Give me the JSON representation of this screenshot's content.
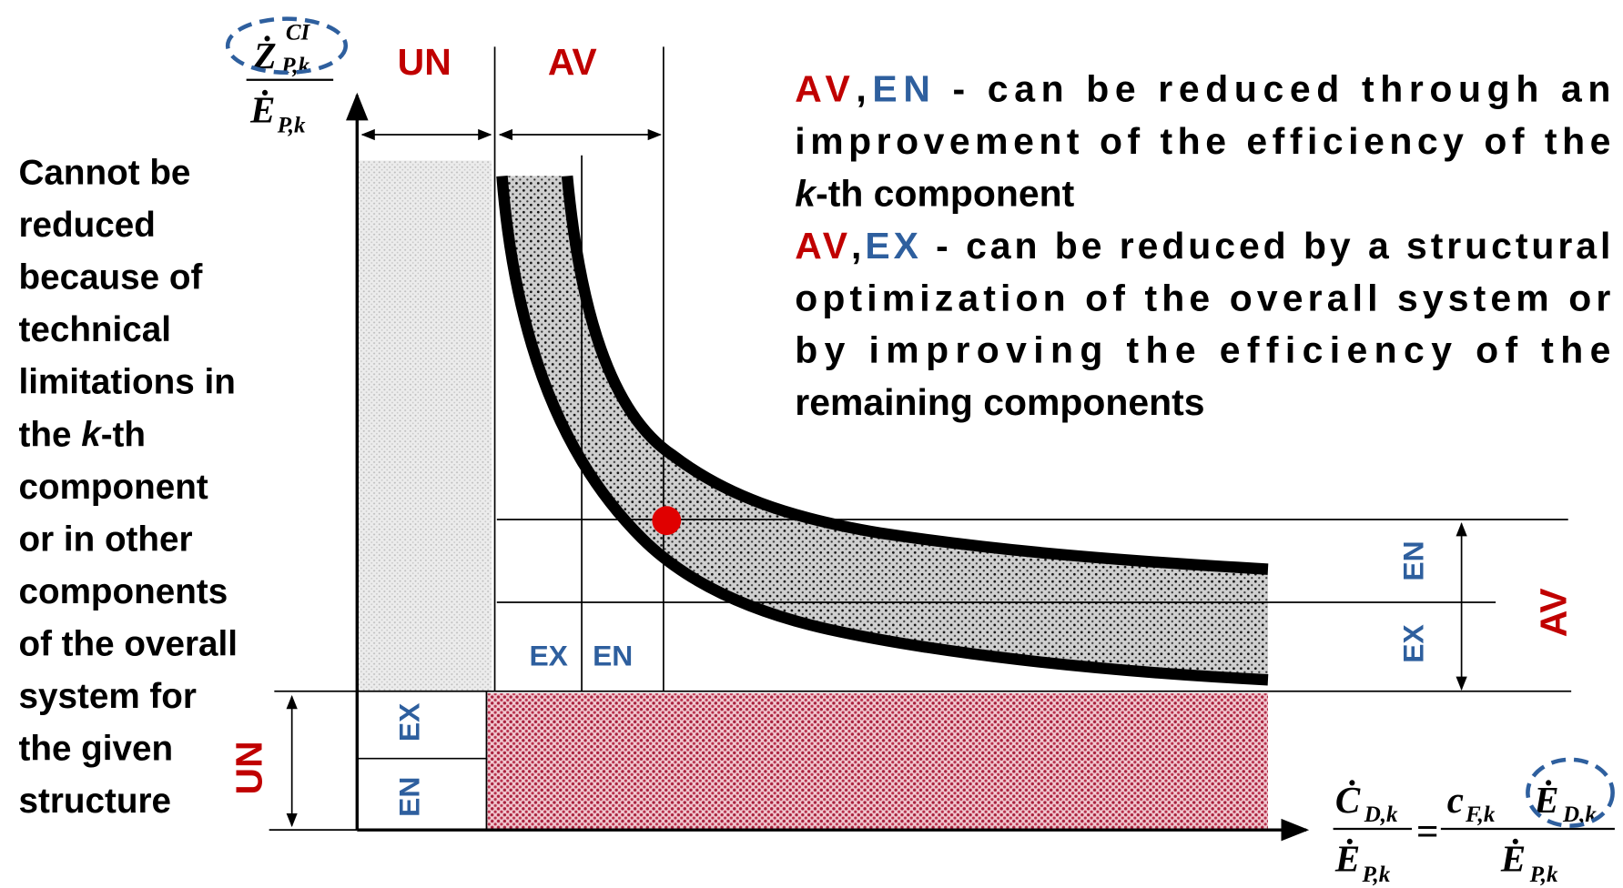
{
  "y_axis_label": {
    "numerator": "Ż",
    "numerator_sup": "CI",
    "numerator_sub": "P,k",
    "denominator": "Ė",
    "denominator_sub": "P,k"
  },
  "column_headers": [
    "UN",
    "AV"
  ],
  "left_note": [
    [
      "Cannot be"
    ],
    [
      "reduced"
    ],
    [
      "because of"
    ],
    [
      "technical"
    ],
    [
      "limitations in"
    ],
    [
      "the ",
      {
        "text": "k",
        "style": "italic"
      },
      "-th"
    ],
    [
      "component"
    ],
    [
      "or in other"
    ],
    [
      "components"
    ],
    [
      "of the overall"
    ],
    [
      "system for"
    ],
    [
      "the given"
    ],
    [
      "structure"
    ]
  ],
  "explanation": [
    [
      {
        "text": "AV",
        "style": "red"
      },
      ",",
      {
        "text": "EN",
        "style": "blue"
      },
      " - can be reduced through an"
    ],
    [
      "improvement of the efficiency of the"
    ],
    [
      {
        "text": "k",
        "style": "italic"
      },
      "-th component"
    ],
    [
      {
        "text": "AV",
        "style": "red"
      },
      ",",
      {
        "text": "EX",
        "style": "blue"
      },
      " - can be reduced by a structural"
    ],
    [
      "optimization of the overall system or"
    ],
    [
      "by improving the efficiency of the"
    ],
    [
      "remaining components"
    ]
  ],
  "regions": {
    "av_bottom": [
      "EX",
      "EN"
    ],
    "av_side": [
      "EN",
      "EX"
    ],
    "av_side_title": "AV",
    "un_side_title": "UN",
    "un_column": [
      "EX",
      "EN"
    ]
  },
  "x_axis_label": {
    "lhs_numerator": "Ċ",
    "lhs_numerator_sub": "D,k",
    "lhs_denominator": "Ė",
    "lhs_denominator_sub": "P,k",
    "equals": "=",
    "rhs_numerator_c": "c",
    "rhs_numerator_c_sub": "F,k",
    "rhs_numerator_e": "Ė",
    "rhs_numerator_e_sub": "D,k",
    "rhs_denominator": "Ė",
    "rhs_denominator_sub": "P,k"
  }
}
